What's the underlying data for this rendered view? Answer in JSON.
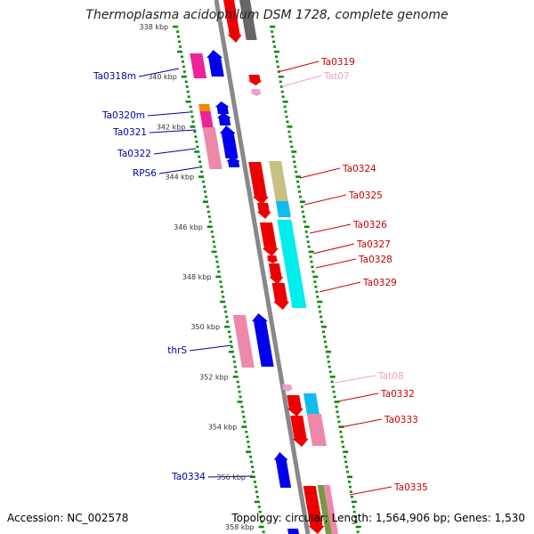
{
  "title": "Thermoplasma acidophilum DSM 1728, complete genome",
  "footer": {
    "accession": "Accession: NC_002578",
    "summary": "Topology: circular; Length: 1,564,906 bp; Genes: 1,530"
  },
  "scale_labels": [
    {
      "label": "338 kbp",
      "kbp": 338
    },
    {
      "label": "340 kbp",
      "kbp": 340
    },
    {
      "label": "342 kbp",
      "kbp": 342
    },
    {
      "label": "344 kbp",
      "kbp": 344
    },
    {
      "label": "346 kbp",
      "kbp": 346
    },
    {
      "label": "348 kbp",
      "kbp": 348
    },
    {
      "label": "350 kbp",
      "kbp": 350
    },
    {
      "label": "352 kbp",
      "kbp": 352
    },
    {
      "label": "354 kbp",
      "kbp": 354
    },
    {
      "label": "356 kbp",
      "kbp": 356
    },
    {
      "label": "358 kbp",
      "kbp": 358
    }
  ],
  "gene_labels_left": [
    {
      "name": "Ta0318m",
      "color": "#0000aa"
    },
    {
      "name": "Ta0320m",
      "color": "#0000aa"
    },
    {
      "name": "Ta0321",
      "color": "#0000aa"
    },
    {
      "name": "Ta0322",
      "color": "#0000aa"
    },
    {
      "name": "RPS6",
      "color": "#0000aa"
    },
    {
      "name": "thrS",
      "color": "#0000aa"
    },
    {
      "name": "Ta0334",
      "color": "#0000aa"
    }
  ],
  "gene_labels_right": [
    {
      "name": "Ta0319",
      "color": "#cc0000"
    },
    {
      "name": "Tat07",
      "color": "#f0a0c8"
    },
    {
      "name": "Ta0324",
      "color": "#cc0000"
    },
    {
      "name": "Ta0325",
      "color": "#cc0000"
    },
    {
      "name": "Ta0326",
      "color": "#cc0000"
    },
    {
      "name": "Ta0327",
      "color": "#cc0000"
    },
    {
      "name": "Ta0328",
      "color": "#cc0000"
    },
    {
      "name": "Ta0329",
      "color": "#cc0000"
    },
    {
      "name": "Tat08",
      "color": "#f0a0c8"
    },
    {
      "name": "Ta0332",
      "color": "#cc0000"
    },
    {
      "name": "Ta0333",
      "color": "#cc0000"
    },
    {
      "name": "Ta0335",
      "color": "#cc0000"
    }
  ],
  "colors": {
    "backbone": "#888888",
    "forward_strand": "#ee0000",
    "reverse_strand": "#0000ee",
    "tick": "#008800",
    "trna": "#f0a0c8",
    "cog_pink": "#ee88aa",
    "cog_magenta": "#ee2299",
    "cog_cyan": "#00eeee",
    "cog_khaki": "#c8c080",
    "cog_orange": "#ee8800",
    "cog_sky": "#11bbee",
    "cog_olive": "#779944",
    "cog_gray": "#666666"
  }
}
